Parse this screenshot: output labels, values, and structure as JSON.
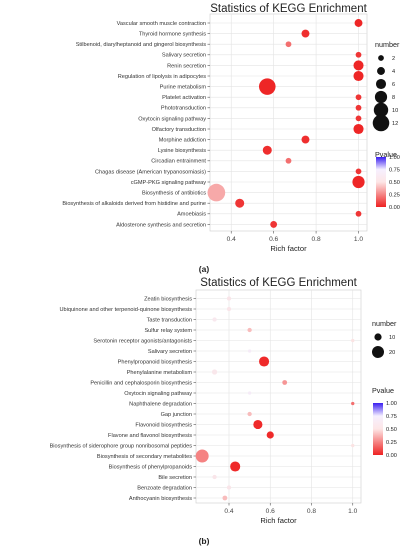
{
  "chart_data": [
    {
      "type": "scatter",
      "panel_label": "(a)",
      "title": "Statistics of KEGG Enrichment",
      "xlabel": "Rich factor",
      "ylabel": "",
      "xlim": [
        0.3,
        1.04
      ],
      "xticks": [
        "0.4",
        "0.6",
        "0.8",
        "1.0"
      ],
      "xtick_values": [
        0.4,
        0.6,
        0.8,
        1.0
      ],
      "grid": true,
      "categories": [
        "Vascular smooth muscle contraction",
        "Thyroid hormone synthesis",
        "Stilbenoid, diarylheptanoid and gingerol biosynthesis",
        "Salivary secretion",
        "Renin secretion",
        "Regulation of lipolysis in adipocytes",
        "Purine metabolism",
        "Platelet activation",
        "Phototransduction",
        "Oxytocin signaling pathway",
        "Olfactory transduction",
        "Morphine addiction",
        "Lysine biosynthesis",
        "Circadian entrainment",
        "Chagas disease (American trypanosomiasis)",
        "cGMP-PKG signaling pathway",
        "Biosynthesis of antibiotics",
        "Biosynthesis of alkaloids derived from histidine and purine",
        "Amoebiasis",
        "Aldosterone synthesis and secretion"
      ],
      "points": [
        {
          "category": "Vascular smooth muscle contraction",
          "rich_factor": 1.0,
          "number": 4,
          "pvalue": 0.01
        },
        {
          "category": "Thyroid hormone synthesis",
          "rich_factor": 0.75,
          "number": 4,
          "pvalue": 0.03
        },
        {
          "category": "Stilbenoid, diarylheptanoid and gingerol biosynthesis",
          "rich_factor": 0.67,
          "number": 2,
          "pvalue": 0.2
        },
        {
          "category": "Salivary secretion",
          "rich_factor": 1.0,
          "number": 2,
          "pvalue": 0.05
        },
        {
          "category": "Renin secretion",
          "rich_factor": 1.0,
          "number": 6,
          "pvalue": 0.01
        },
        {
          "category": "Regulation of lipolysis in adipocytes",
          "rich_factor": 1.0,
          "number": 6,
          "pvalue": 0.01
        },
        {
          "category": "Purine metabolism",
          "rich_factor": 0.57,
          "number": 12,
          "pvalue": 0.01
        },
        {
          "category": "Platelet activation",
          "rich_factor": 1.0,
          "number": 2,
          "pvalue": 0.05
        },
        {
          "category": "Phototransduction",
          "rich_factor": 1.0,
          "number": 2,
          "pvalue": 0.05
        },
        {
          "category": "Oxytocin signaling pathway",
          "rich_factor": 1.0,
          "number": 2,
          "pvalue": 0.05
        },
        {
          "category": "Olfactory transduction",
          "rich_factor": 1.0,
          "number": 6,
          "pvalue": 0.01
        },
        {
          "category": "Morphine addiction",
          "rich_factor": 0.75,
          "number": 4,
          "pvalue": 0.03
        },
        {
          "category": "Lysine biosynthesis",
          "rich_factor": 0.57,
          "number": 5,
          "pvalue": 0.03
        },
        {
          "category": "Circadian entrainment",
          "rich_factor": 0.67,
          "number": 2,
          "pvalue": 0.2
        },
        {
          "category": "Chagas disease (American trypanosomiasis)",
          "rich_factor": 1.0,
          "number": 2,
          "pvalue": 0.05
        },
        {
          "category": "cGMP-PKG signaling pathway",
          "rich_factor": 1.0,
          "number": 8,
          "pvalue": 0.01
        },
        {
          "category": "Biosynthesis of antibiotics",
          "rich_factor": 0.33,
          "number": 13,
          "pvalue": 0.35
        },
        {
          "category": "Biosynthesis of alkaloids derived from histidine and purine",
          "rich_factor": 0.44,
          "number": 5,
          "pvalue": 0.05
        },
        {
          "category": "Amoebiasis",
          "rich_factor": 1.0,
          "number": 2,
          "pvalue": 0.05
        },
        {
          "category": "Aldosterone synthesis and secretion",
          "rich_factor": 0.6,
          "number": 3,
          "pvalue": 0.05
        }
      ],
      "size_legend": {
        "title": "number",
        "values": [
          2,
          4,
          6,
          8,
          10,
          12
        ]
      },
      "color_legend": {
        "title": "Pvalue",
        "ticks": [
          "1.00",
          "0.75",
          "0.50",
          "0.25",
          "0.00"
        ],
        "range": [
          0,
          1
        ],
        "colors": [
          "#ee2222",
          "#ffffff",
          "#3a1ff0"
        ]
      }
    },
    {
      "type": "scatter",
      "panel_label": "(b)",
      "title": "Statistics of KEGG Enrichment",
      "xlabel": "Rich factor",
      "ylabel": "",
      "xlim": [
        0.24,
        1.04
      ],
      "xticks": [
        "0.4",
        "0.6",
        "0.8",
        "1.0"
      ],
      "xtick_values": [
        0.4,
        0.6,
        0.8,
        1.0
      ],
      "grid": true,
      "categories": [
        "Zeatin biosynthesis",
        "Ubiquinone and other terpenoid-quinone biosynthesis",
        "Taste transduction",
        "Sulfur relay system",
        "Serotonin receptor agonists/antagonists",
        "Salivary secretion",
        "Phenylpropanoid biosynthesis",
        "Phenylalanine metabolism",
        "Penicillin and cephalosporin biosynthesis",
        "Oxytocin signaling pathway",
        "Naphthalene degradation",
        "Gap junction",
        "Flavonoid biosynthesis",
        "Flavone and flavonol biosynthesis",
        "Biosynthesis of siderophore group nonribosomal peptides",
        "Biosynthesis of secondary metabolites",
        "Biosynthesis of phenylpropanoids",
        "Bile secretion",
        "Benzoate degradation",
        "Anthocyanin biosynthesis"
      ],
      "points": [
        {
          "category": "Zeatin biosynthesis",
          "rich_factor": 0.4,
          "number": 4,
          "pvalue": 0.6
        },
        {
          "category": "Ubiquinone and other terpenoid-quinone biosynthesis",
          "rich_factor": 0.4,
          "number": 4,
          "pvalue": 0.6
        },
        {
          "category": "Taste transduction",
          "rich_factor": 0.33,
          "number": 4,
          "pvalue": 0.7
        },
        {
          "category": "Sulfur relay system",
          "rich_factor": 0.5,
          "number": 4,
          "pvalue": 0.4
        },
        {
          "category": "Serotonin receptor agonists/antagonists",
          "rich_factor": 1.0,
          "number": 2,
          "pvalue": 0.5
        },
        {
          "category": "Salivary secretion",
          "rich_factor": 0.5,
          "number": 2,
          "pvalue": 0.85
        },
        {
          "category": "Phenylpropanoid biosynthesis",
          "rich_factor": 0.57,
          "number": 16,
          "pvalue": 0.02
        },
        {
          "category": "Phenylalanine metabolism",
          "rich_factor": 0.33,
          "number": 6,
          "pvalue": 0.65
        },
        {
          "category": "Penicillin and cephalosporin biosynthesis",
          "rich_factor": 0.67,
          "number": 5,
          "pvalue": 0.3
        },
        {
          "category": "Oxytocin signaling pathway",
          "rich_factor": 0.5,
          "number": 2,
          "pvalue": 0.85
        },
        {
          "category": "Naphthalene degradation",
          "rich_factor": 1.0,
          "number": 2,
          "pvalue": 0.2
        },
        {
          "category": "Gap junction",
          "rich_factor": 0.5,
          "number": 4,
          "pvalue": 0.4
        },
        {
          "category": "Flavonoid biosynthesis",
          "rich_factor": 0.54,
          "number": 14,
          "pvalue": 0.02
        },
        {
          "category": "Flavone and flavonol biosynthesis",
          "rich_factor": 0.6,
          "number": 10,
          "pvalue": 0.02
        },
        {
          "category": "Biosynthesis of siderophore group nonribosomal peptides",
          "rich_factor": 1.0,
          "number": 2,
          "pvalue": 0.5
        },
        {
          "category": "Biosynthesis of secondary metabolites",
          "rich_factor": 0.27,
          "number": 22,
          "pvalue": 0.25
        },
        {
          "category": "Biosynthesis of phenylpropanoids",
          "rich_factor": 0.43,
          "number": 16,
          "pvalue": 0.02
        },
        {
          "category": "Bile secretion",
          "rich_factor": 0.33,
          "number": 4,
          "pvalue": 0.6
        },
        {
          "category": "Benzoate degradation",
          "rich_factor": 0.4,
          "number": 4,
          "pvalue": 0.6
        },
        {
          "category": "Anthocyanin biosynthesis",
          "rich_factor": 0.38,
          "number": 5,
          "pvalue": 0.4
        }
      ],
      "size_legend": {
        "title": "number",
        "values": [
          10,
          20
        ]
      },
      "color_legend": {
        "title": "Pvalue",
        "ticks": [
          "1.00",
          "0.75",
          "0.50",
          "0.25",
          "0.00"
        ],
        "range": [
          0,
          1
        ],
        "colors": [
          "#ee2222",
          "#ffffff",
          "#3a1ff0"
        ]
      }
    }
  ]
}
